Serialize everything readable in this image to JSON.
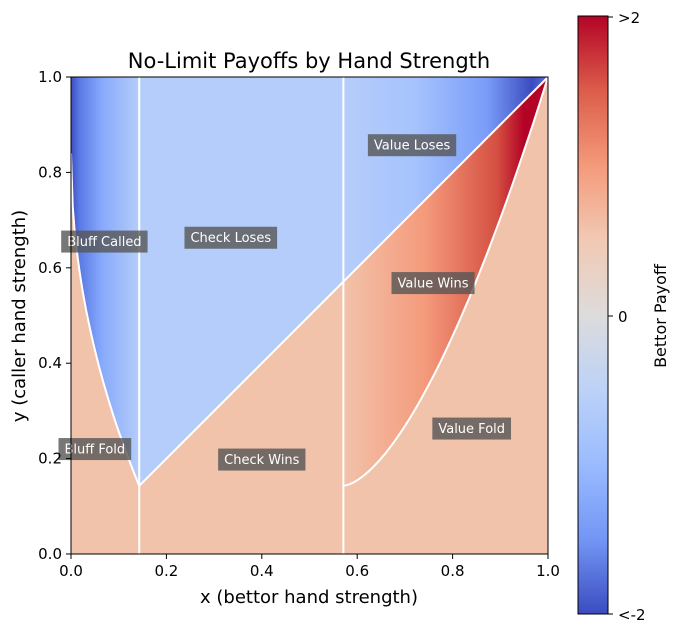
{
  "chart_data": {
    "type": "heatmap",
    "title": "No-Limit Payoffs by Hand Strength",
    "xlabel": "x (bettor hand strength)",
    "ylabel": "y (caller hand strength)",
    "xlim": [
      0,
      1
    ],
    "ylim": [
      0,
      1
    ],
    "x_ticks": [
      "0.0",
      "0.2",
      "0.4",
      "0.6",
      "0.8",
      "1.0"
    ],
    "y_ticks": [
      "0.0",
      "0.2",
      "0.4",
      "0.6",
      "0.8",
      "1.0"
    ],
    "thresholds": {
      "bluff_bet_max_x": 0.143,
      "value_bet_min_x": 0.571
    },
    "colorbar": {
      "label": "Bettor Payoff",
      "tick_labels": [
        ">2",
        "0",
        "<-2"
      ],
      "range": [
        -2,
        2
      ],
      "colormap": "coolwarm"
    },
    "regions": [
      {
        "label": "Bluff Called",
        "x": 0.07,
        "y": 0.655,
        "payoff": "negative, about -1.5 near x=0 fading to -1 at x=0.14"
      },
      {
        "label": "Bluff Fold",
        "x": 0.05,
        "y": 0.22,
        "payoff": 1
      },
      {
        "label": "Check Loses",
        "x": 0.335,
        "y": 0.663,
        "payoff": -1
      },
      {
        "label": "Check Wins",
        "x": 0.4,
        "y": 0.198,
        "payoff": 1
      },
      {
        "label": "Value Loses",
        "x": 0.715,
        "y": 0.857,
        "payoff": "about -1 at x=0.57 to -2 near x=0.97"
      },
      {
        "label": "Value Wins",
        "x": 0.759,
        "y": 0.568,
        "payoff": "about 1 at x=0.57 to above 2 near x=0.93"
      },
      {
        "label": "Value Fold",
        "x": 0.84,
        "y": 0.263,
        "payoff": 1
      }
    ]
  }
}
